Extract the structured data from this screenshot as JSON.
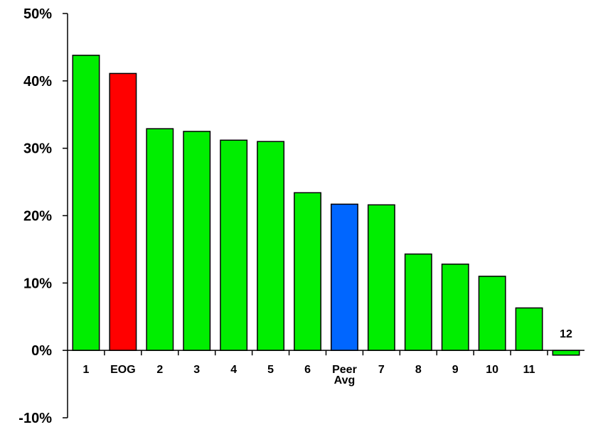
{
  "chart_data": {
    "type": "bar",
    "title": "",
    "xlabel": "",
    "ylabel": "",
    "ylim": [
      -10,
      50
    ],
    "y_ticks": [
      {
        "value": -10,
        "label": "-10%"
      },
      {
        "value": 0,
        "label": "0%"
      },
      {
        "value": 10,
        "label": "10%"
      },
      {
        "value": 20,
        "label": "20%"
      },
      {
        "value": 30,
        "label": "30%"
      },
      {
        "value": 40,
        "label": "40%"
      },
      {
        "value": 50,
        "label": "50%"
      }
    ],
    "categories": [
      [
        "1"
      ],
      [
        "EOG"
      ],
      [
        "2"
      ],
      [
        "3"
      ],
      [
        "4"
      ],
      [
        "5"
      ],
      [
        "6"
      ],
      [
        "Peer",
        "Avg"
      ],
      [
        "7"
      ],
      [
        "8"
      ],
      [
        "9"
      ],
      [
        "10"
      ],
      [
        "11"
      ],
      [
        "12"
      ]
    ],
    "values": [
      43.8,
      41.1,
      32.9,
      32.5,
      31.2,
      31.0,
      23.4,
      21.7,
      21.6,
      14.3,
      12.8,
      11.0,
      6.3,
      -0.7
    ],
    "colors": [
      "#00ee00",
      "#ff0000",
      "#00ee00",
      "#00ee00",
      "#00ee00",
      "#00ee00",
      "#00ee00",
      "#0066ff",
      "#00ee00",
      "#00ee00",
      "#00ee00",
      "#00ee00",
      "#00ee00",
      "#00ee00"
    ],
    "grid": false,
    "legend": "none"
  }
}
